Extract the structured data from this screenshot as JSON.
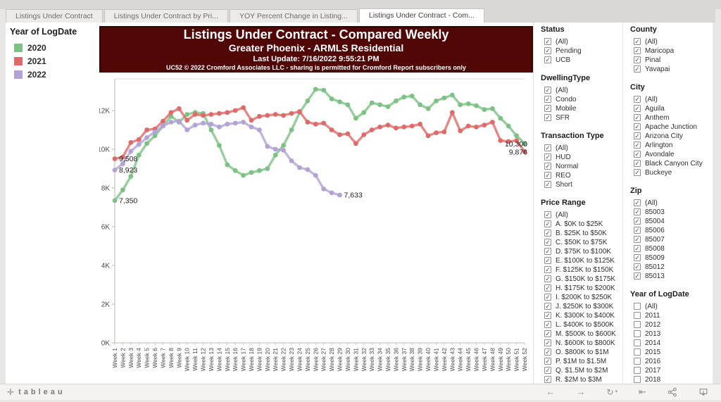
{
  "tabs": [
    {
      "label": "Listings Under Contract",
      "active": false
    },
    {
      "label": "Listings Under Contract by Pri...",
      "active": false
    },
    {
      "label": "YOY Percent Change in Listing...",
      "active": false
    },
    {
      "label": "Listings Under Contract - Com...",
      "active": true
    }
  ],
  "legend": {
    "title": "Year of LogDate",
    "items": [
      {
        "label": "2020",
        "color": "#7ec185"
      },
      {
        "label": "2021",
        "color": "#de6a6a"
      },
      {
        "label": "2022",
        "color": "#b3a2d6"
      }
    ]
  },
  "banner": {
    "title": "Listings Under Contract - Compared Weekly",
    "subtitle": "Greater Phoenix - ARMLS Residential",
    "last_update": "Last Update: 7/16/2022 9:55:21 PM",
    "footnote": "UC52 © 2022 Cromford Associates LLC - sharing is permitted for Cromford Report subscribers only",
    "background": "#520707"
  },
  "chart_data": {
    "type": "line",
    "title": "Listings Under Contract - Compared Weekly",
    "xlabel": "",
    "ylabel": "",
    "ylim": [
      0,
      13700
    ],
    "grid": false,
    "legend_position": "left",
    "yticks": [
      {
        "label": "0K",
        "value": 0
      },
      {
        "label": "2K",
        "value": 2000
      },
      {
        "label": "4K",
        "value": 4000
      },
      {
        "label": "6K",
        "value": 6000
      },
      {
        "label": "8K",
        "value": 8000
      },
      {
        "label": "10K",
        "value": 10000
      },
      {
        "label": "12K",
        "value": 12000
      }
    ],
    "x_categories": [
      "Week 1",
      "Week 2",
      "Week 3",
      "Week 4",
      "Week 5",
      "Week 6",
      "Week 7",
      "Week 8",
      "Week 9",
      "Week 10",
      "Week 11",
      "Week 12",
      "Week 13",
      "Week 14",
      "Week 15",
      "Week 16",
      "Week 17",
      "Week 18",
      "Week 19",
      "Week 20",
      "Week 21",
      "Week 22",
      "Week 23",
      "Week 24",
      "Week 25",
      "Week 26",
      "Week 27",
      "Week 28",
      "Week 29",
      "Week 30",
      "Week 31",
      "Week 32",
      "Week 33",
      "Week 34",
      "Week 35",
      "Week 36",
      "Week 37",
      "Week 38",
      "Week 39",
      "Week 40",
      "Week 41",
      "Week 42",
      "Week 43",
      "Week 44",
      "Week 45",
      "Week 46",
      "Week 47",
      "Week 48",
      "Week 49",
      "Week 50",
      "Week 51",
      "Week 52"
    ],
    "series": [
      {
        "name": "2020",
        "color": "#7ec185",
        "values": [
          7350,
          7900,
          8600,
          9700,
          10300,
          10700,
          11200,
          11700,
          11400,
          11800,
          11900,
          11850,
          11000,
          10200,
          9200,
          8900,
          8650,
          8800,
          8900,
          9000,
          9700,
          10200,
          11000,
          11900,
          12500,
          13100,
          13050,
          12600,
          12450,
          12300,
          11600,
          11900,
          12400,
          12300,
          12200,
          12500,
          12700,
          12750,
          12300,
          12100,
          12500,
          12650,
          12800,
          12300,
          12350,
          12250,
          12050,
          12100,
          11600,
          11200,
          10700,
          10300
        ]
      },
      {
        "name": "2021",
        "color": "#de6a6a",
        "values": [
          9508,
          9600,
          10350,
          10500,
          11000,
          11050,
          11450,
          11900,
          12100,
          11500,
          11800,
          11750,
          11800,
          11850,
          11900,
          12000,
          12150,
          11500,
          11700,
          11750,
          11800,
          11750,
          11850,
          11950,
          11400,
          11300,
          11350,
          11000,
          10750,
          10800,
          10300,
          10750,
          11000,
          11150,
          11250,
          11100,
          11150,
          11200,
          11300,
          10700,
          10850,
          10900,
          11900,
          10950,
          11200,
          11150,
          11250,
          11400,
          10450,
          10400,
          10450,
          9876
        ]
      },
      {
        "name": "2022",
        "color": "#b3a2d6",
        "values": [
          8923,
          9250,
          9900,
          10250,
          10600,
          10900,
          11200,
          11400,
          11450,
          11000,
          11250,
          11350,
          11300,
          11150,
          11300,
          11350,
          11400,
          11150,
          11000,
          10150,
          10000,
          9950,
          9400,
          9050,
          8950,
          8650,
          7950,
          7750,
          7633
        ]
      }
    ],
    "annotations": [
      {
        "text": "9,508",
        "series": "2021",
        "week": 1,
        "side": "right"
      },
      {
        "text": "8,923",
        "series": "2022",
        "week": 1,
        "side": "right"
      },
      {
        "text": "7,350",
        "series": "2020",
        "week": 1,
        "side": "right"
      },
      {
        "text": "7,633",
        "series": "2022",
        "week": 29,
        "side": "right"
      },
      {
        "text": "10,300",
        "series": "2020",
        "week": 52,
        "side": "left"
      },
      {
        "text": "9,876",
        "series": "2021",
        "week": 52,
        "side": "left"
      }
    ]
  },
  "filters": {
    "column1": [
      {
        "title": "Status",
        "checked": true,
        "items": [
          "(All)",
          "Pending",
          "UCB"
        ]
      },
      {
        "title": "DwellingType",
        "checked": true,
        "items": [
          "(All)",
          "Condo",
          "Mobile",
          "SFR"
        ]
      },
      {
        "title": "Transaction Type",
        "checked": true,
        "items": [
          "(All)",
          "HUD",
          "Normal",
          "REO",
          "Short"
        ]
      },
      {
        "title": "Price Range",
        "checked": true,
        "items": [
          "(All)",
          "A. $0K to $25K",
          "B. $25K to $50K",
          "C. $50K to $75K",
          "D. $75K to $100K",
          "E. $100K to $125K",
          "F. $125K to $150K",
          "G. $150K to $175K",
          "H. $175K to $200K",
          "I. $200K to $250K",
          "J. $250K to $300K",
          "K. $300K to $400K",
          "L. $400K to $500K",
          "M. $500K to $600K",
          "N. $600K to $800K",
          "O. $800K to $1M",
          "P. $1M to $1.5M",
          "Q. $1.5M to $2M",
          "R. $2M to $3M"
        ]
      }
    ],
    "column2": [
      {
        "title": "County",
        "checked": true,
        "items": [
          "(All)",
          "Maricopa",
          "Pinal",
          "Yavapai"
        ]
      },
      {
        "title": "City",
        "checked": true,
        "items": [
          "(All)",
          "Aguila",
          "Anthem",
          "Apache Junction",
          "Arizona City",
          "Arlington",
          "Avondale",
          "Black Canyon City",
          "Buckeye"
        ]
      },
      {
        "title": "Zip",
        "checked": true,
        "items": [
          "(All)",
          "85003",
          "85004",
          "85006",
          "85007",
          "85008",
          "85009",
          "85012",
          "85013"
        ]
      },
      {
        "title": "Year of LogDate",
        "checked": false,
        "items": [
          "(All)",
          "2011",
          "2012",
          "2013",
          "2014",
          "2015",
          "2016",
          "2017",
          "2018"
        ]
      }
    ]
  },
  "toolbar": {
    "logo_text": "tableau",
    "icons": [
      "undo",
      "redo",
      "replay",
      "revert",
      "share",
      "download"
    ]
  }
}
